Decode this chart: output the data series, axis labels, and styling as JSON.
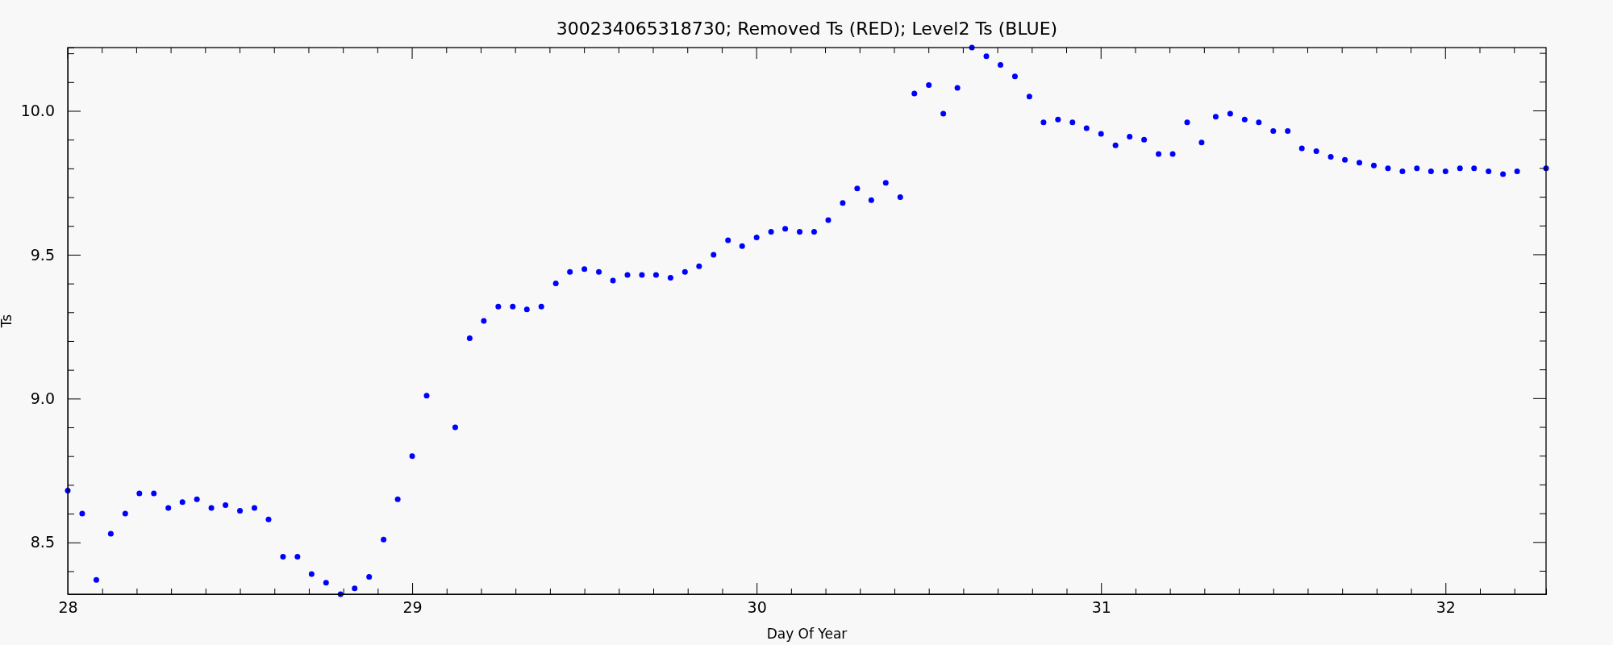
{
  "chart_data": {
    "type": "scatter",
    "title": "300234065318730; Removed Ts (RED); Level2 Ts (BLUE)",
    "xlabel": "Day Of Year",
    "ylabel": "Ts",
    "xlim": [
      28,
      32.292
    ],
    "ylim": [
      8.32,
      10.22
    ],
    "xticks": [
      28,
      {
        "value": 28.1,
        "label": null
      },
      {
        "value": 28.2,
        "label": null
      },
      {
        "value": 28.3,
        "label": null
      },
      {
        "value": 28.4,
        "label": null
      },
      {
        "value": 28.5,
        "label": null
      },
      {
        "value": 28.6,
        "label": null
      },
      {
        "value": 28.7,
        "label": null
      },
      {
        "value": 28.8,
        "label": null
      },
      {
        "value": 28.9,
        "label": null
      },
      29,
      {
        "value": 29.1,
        "label": null
      },
      {
        "value": 29.2,
        "label": null
      },
      {
        "value": 29.3,
        "label": null
      },
      {
        "value": 29.4,
        "label": null
      },
      {
        "value": 29.5,
        "label": null
      },
      {
        "value": 29.6,
        "label": null
      },
      {
        "value": 29.7,
        "label": null
      },
      {
        "value": 29.8,
        "label": null
      },
      {
        "value": 29.9,
        "label": null
      },
      30,
      {
        "value": 30.1,
        "label": null
      },
      {
        "value": 30.2,
        "label": null
      },
      {
        "value": 30.3,
        "label": null
      },
      {
        "value": 30.4,
        "label": null
      },
      {
        "value": 30.5,
        "label": null
      },
      {
        "value": 30.6,
        "label": null
      },
      {
        "value": 30.7,
        "label": null
      },
      {
        "value": 30.8,
        "label": null
      },
      {
        "value": 30.9,
        "label": null
      },
      31,
      {
        "value": 31.1,
        "label": null
      },
      {
        "value": 31.2,
        "label": null
      },
      {
        "value": 31.3,
        "label": null
      },
      {
        "value": 31.4,
        "label": null
      },
      {
        "value": 31.5,
        "label": null
      },
      {
        "value": 31.6,
        "label": null
      },
      {
        "value": 31.7,
        "label": null
      },
      {
        "value": 31.8,
        "label": null
      },
      {
        "value": 31.9,
        "label": null
      },
      32,
      {
        "value": 32.1,
        "label": null
      },
      {
        "value": 32.2,
        "label": null
      }
    ],
    "yticks": [
      {
        "value": 8.4,
        "label": null
      },
      {
        "value": 8.5,
        "label": "8.5"
      },
      {
        "value": 8.6,
        "label": null
      },
      {
        "value": 8.7,
        "label": null
      },
      {
        "value": 8.8,
        "label": null
      },
      {
        "value": 8.9,
        "label": null
      },
      {
        "value": 9,
        "label": "9.0"
      },
      {
        "value": 9.1,
        "label": null
      },
      {
        "value": 9.2,
        "label": null
      },
      {
        "value": 9.3,
        "label": null
      },
      {
        "value": 9.4,
        "label": null
      },
      {
        "value": 9.5,
        "label": "9.5"
      },
      {
        "value": 9.6,
        "label": null
      },
      {
        "value": 9.7,
        "label": null
      },
      {
        "value": 9.8,
        "label": null
      },
      {
        "value": 9.9,
        "label": null
      },
      {
        "value": 10,
        "label": "10.0"
      },
      {
        "value": 10.1,
        "label": null
      },
      {
        "value": 10.2,
        "label": null
      }
    ],
    "marker": "circle",
    "grid": false,
    "series": [
      {
        "color": "#0000ff",
        "x": [
          28.0,
          28.042,
          28.083,
          28.125,
          28.167,
          28.208,
          28.25,
          28.292,
          28.333,
          28.375,
          28.417,
          28.458,
          28.5,
          28.542,
          28.583,
          28.625,
          28.667,
          28.708,
          28.75,
          28.792,
          28.833,
          28.875,
          28.917,
          28.958,
          29.0,
          29.042,
          29.125,
          29.167,
          29.208,
          29.25,
          29.292,
          29.333,
          29.375,
          29.417,
          29.458,
          29.5,
          29.542,
          29.583,
          29.625,
          29.667,
          29.708,
          29.75,
          29.792,
          29.833,
          29.875,
          29.917,
          29.958,
          30.0,
          30.042,
          30.083,
          30.125,
          30.167,
          30.208,
          30.25,
          30.292,
          30.333,
          30.375,
          30.417,
          30.458,
          30.5,
          30.542,
          30.583,
          30.625,
          30.667,
          30.708,
          30.75,
          30.792,
          30.833,
          30.875,
          30.917,
          30.958,
          31.0,
          31.042,
          31.083,
          31.125,
          31.167,
          31.208,
          31.25,
          31.292,
          31.333,
          31.375,
          31.417,
          31.458,
          31.5,
          31.542,
          31.583,
          31.625,
          31.667,
          31.708,
          31.75,
          31.792,
          31.833,
          31.875,
          31.917,
          31.958,
          32.0,
          32.042,
          32.083,
          32.125,
          32.167,
          32.208,
          32.292
        ],
        "values": [
          8.68,
          8.6,
          8.37,
          8.53,
          8.6,
          8.67,
          8.67,
          8.62,
          8.64,
          8.65,
          8.62,
          8.63,
          8.61,
          8.62,
          8.58,
          8.45,
          8.45,
          8.39,
          8.36,
          8.32,
          8.34,
          8.38,
          8.51,
          8.65,
          8.8,
          9.01,
          8.9,
          9.21,
          9.27,
          9.32,
          9.32,
          9.31,
          9.32,
          9.4,
          9.44,
          9.45,
          9.44,
          9.41,
          9.43,
          9.43,
          9.43,
          9.42,
          9.44,
          9.46,
          9.5,
          9.55,
          9.53,
          9.56,
          9.58,
          9.59,
          9.58,
          9.58,
          9.62,
          9.68,
          9.73,
          9.69,
          9.75,
          9.7,
          10.06,
          10.09,
          9.99,
          10.08,
          10.22,
          10.19,
          10.16,
          10.12,
          10.05,
          9.96,
          9.97,
          9.96,
          9.94,
          9.92,
          9.88,
          9.91,
          9.9,
          9.85,
          9.85,
          9.96,
          9.89,
          9.98,
          9.99,
          9.97,
          9.96,
          9.93,
          9.93,
          9.87,
          9.86,
          9.84,
          9.83,
          9.82,
          9.81,
          9.8,
          9.79,
          9.8,
          9.79,
          9.79,
          9.8,
          9.8,
          9.79,
          9.78,
          9.79,
          9.8
        ]
      }
    ]
  }
}
